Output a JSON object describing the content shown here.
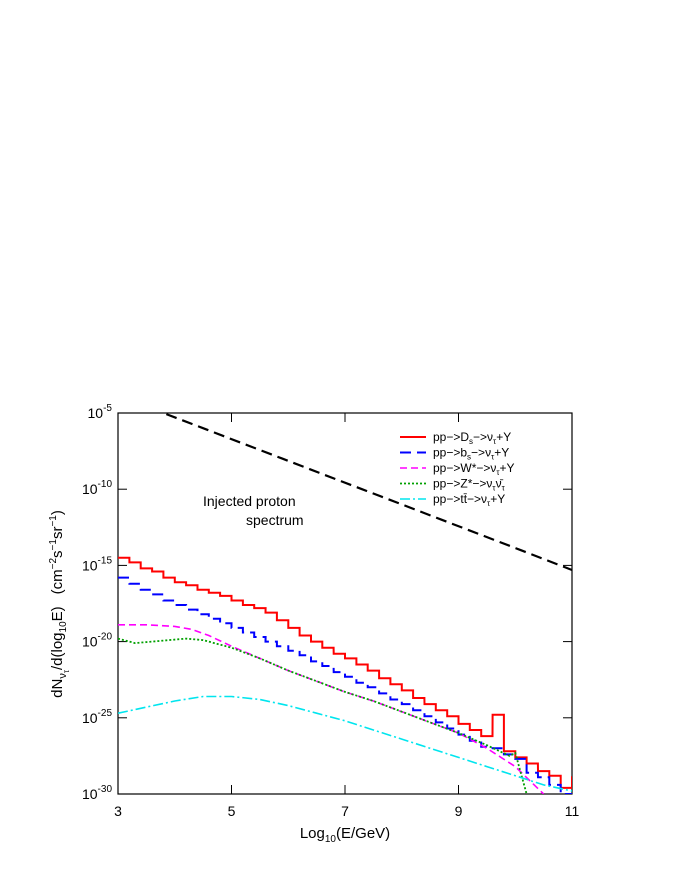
{
  "chart_data": {
    "type": "line",
    "title": "",
    "xlabel": {
      "text": "Log",
      "sub": "10",
      "rest": "(E/GeV)"
    },
    "ylabel": {
      "numerator": "dN",
      "numerator_sub": "ν",
      "numerator_subsub": "τ",
      "denominator": "/d(log",
      "denominator_sub": "10",
      "denominator_end": "E)",
      "units_prefix": "(cm",
      "units_exp1": "−2",
      "units_mid1": "s",
      "units_exp2": "−1",
      "units_mid2": "sr",
      "units_exp3": "−1",
      "units_end": ")"
    },
    "xlim": [
      3,
      11
    ],
    "ylim_log10": [
      -30,
      -5
    ],
    "y_scale": "log",
    "x_ticks": [
      3,
      5,
      7,
      9,
      11
    ],
    "x_tick_labels": [
      "3",
      "5",
      "7",
      "9",
      "11"
    ],
    "y_ticks_log10": [
      -30,
      -25,
      -20,
      -15,
      -10,
      -5
    ],
    "y_tick_base": "10",
    "y_tick_exponents": [
      "-30",
      "-25",
      "-20",
      "-15",
      "-10",
      "-5"
    ],
    "grid": false,
    "legend_position": "top-right",
    "annotation": {
      "line1": "Injected proton",
      "line2": "spectrum"
    },
    "series": [
      {
        "name": "pp->D_s->ν_τ+Y",
        "legend": {
          "a": "pp−>D",
          "a_sub": "s",
          "b": "−>ν",
          "b_sub": "τ",
          "c": "+Y"
        },
        "color": "#ff0000",
        "dash": "solid",
        "width": 2,
        "step": true,
        "bin_width": 0.2,
        "x_start": 3.0,
        "values_log10": [
          -14.5,
          -14.8,
          -15.2,
          -15.4,
          -15.8,
          -16.1,
          -16.3,
          -16.6,
          -16.8,
          -17.0,
          -17.3,
          -17.6,
          -17.8,
          -18.1,
          -18.6,
          -19.1,
          -19.6,
          -20.0,
          -20.4,
          -20.8,
          -21.1,
          -21.5,
          -21.9,
          -22.4,
          -22.8,
          -23.2,
          -23.7,
          -24.1,
          -24.5,
          -24.9,
          -25.4,
          -25.8,
          -26.2,
          -24.8,
          -27.2,
          -27.6,
          -28.0,
          -28.5,
          -28.8,
          -29.6,
          -28.9,
          -29.8
        ]
      },
      {
        "name": "pp->b_s->ν_τ+Y",
        "legend": {
          "a": "pp−>b",
          "a_sub": "s",
          "b": "−>ν",
          "b_sub": "τ",
          "c": "+Y"
        },
        "color": "#0000ff",
        "dash": "11,6",
        "width": 2,
        "step": true,
        "bin_width": 0.2,
        "x_start": 3.0,
        "values_log10": [
          -15.8,
          -16.2,
          -16.6,
          -16.9,
          -17.3,
          -17.6,
          -17.9,
          -18.2,
          -18.5,
          -18.8,
          -19.1,
          -19.4,
          -19.7,
          -20.0,
          -20.3,
          -20.6,
          -20.9,
          -21.3,
          -21.6,
          -22.0,
          -22.3,
          -22.7,
          -23.0,
          -23.4,
          -23.8,
          -24.1,
          -24.5,
          -24.9,
          -25.3,
          -25.7,
          -26.1,
          -26.5,
          -26.9,
          -27.0,
          -27.4,
          -27.7,
          -28.6,
          -28.9,
          -29.4,
          -30.0
        ]
      },
      {
        "name": "pp->W*->ν_τ+Y",
        "legend": {
          "a": "pp−>W*",
          "a_sub": "",
          "b": "−>ν",
          "b_sub": "τ",
          "c": "+Y"
        },
        "color": "#ff00ff",
        "dash": "7,4",
        "width": 1.6,
        "step": false,
        "x": [
          3.0,
          3.5,
          4.0,
          4.3,
          4.6,
          5.0,
          5.5,
          6.0,
          6.5,
          7.0,
          7.5,
          8.0,
          8.5,
          9.0,
          9.5,
          10.0,
          10.5
        ],
        "values_log10": [
          -18.9,
          -18.9,
          -19.0,
          -19.2,
          -19.6,
          -20.3,
          -21.1,
          -21.9,
          -22.6,
          -23.3,
          -23.9,
          -24.6,
          -25.3,
          -26.0,
          -27.0,
          -28.2,
          -30.0
        ]
      },
      {
        "name": "pp->Z*->ν_τ ν̄_τ",
        "legend": {
          "a": "pp−>Z*",
          "a_sub": "",
          "b": "−>ν",
          "b_sub": "τ",
          "c": "ν̄",
          "c_sub": "τ"
        },
        "color": "#00a000",
        "dash": "2,2",
        "width": 1.8,
        "step": false,
        "x": [
          3.0,
          3.3,
          3.6,
          3.9,
          4.2,
          4.5,
          5.0,
          5.5,
          6.0,
          6.5,
          7.0,
          7.5,
          8.0,
          8.5,
          9.0,
          9.5,
          9.9,
          10.0,
          10.2
        ],
        "values_log10": [
          -19.8,
          -20.1,
          -20.0,
          -19.9,
          -19.8,
          -19.9,
          -20.4,
          -21.1,
          -21.9,
          -22.6,
          -23.3,
          -23.9,
          -24.6,
          -25.3,
          -26.0,
          -26.8,
          -27.5,
          -27.3,
          -30.0
        ]
      },
      {
        "name": "pp->tt̄->ν_τ+Y",
        "legend": {
          "a": "pp−>tt̄",
          "a_sub": "",
          "b": "−>ν",
          "b_sub": "τ",
          "c": "+Y"
        },
        "color": "#00e5ee",
        "dash": "10,3,2,3",
        "width": 1.6,
        "step": false,
        "x": [
          3.0,
          3.5,
          4.0,
          4.5,
          5.0,
          5.5,
          6.0,
          6.5,
          7.0,
          7.5,
          8.0,
          8.5,
          9.0,
          9.5,
          10.0,
          10.5,
          11.0
        ],
        "values_log10": [
          -24.7,
          -24.3,
          -23.9,
          -23.6,
          -23.6,
          -23.8,
          -24.2,
          -24.7,
          -25.2,
          -25.8,
          -26.4,
          -27.0,
          -27.6,
          -28.2,
          -28.8,
          -29.4,
          -29.8
        ]
      },
      {
        "name": "Injected proton spectrum",
        "color": "#000000",
        "dash": "11,6",
        "width": 2.2,
        "step": false,
        "x": [
          3.0,
          3.8,
          4.5,
          5.2,
          5.9,
          6.6,
          7.3,
          8.0,
          8.7,
          9.4,
          10.1,
          11.0
        ],
        "values_log10": [
          -4.0,
          -5.0,
          -6.0,
          -7.0,
          -8.0,
          -9.0,
          -10.0,
          -11.0,
          -12.0,
          -13.0,
          -14.0,
          -15.3
        ]
      }
    ]
  }
}
